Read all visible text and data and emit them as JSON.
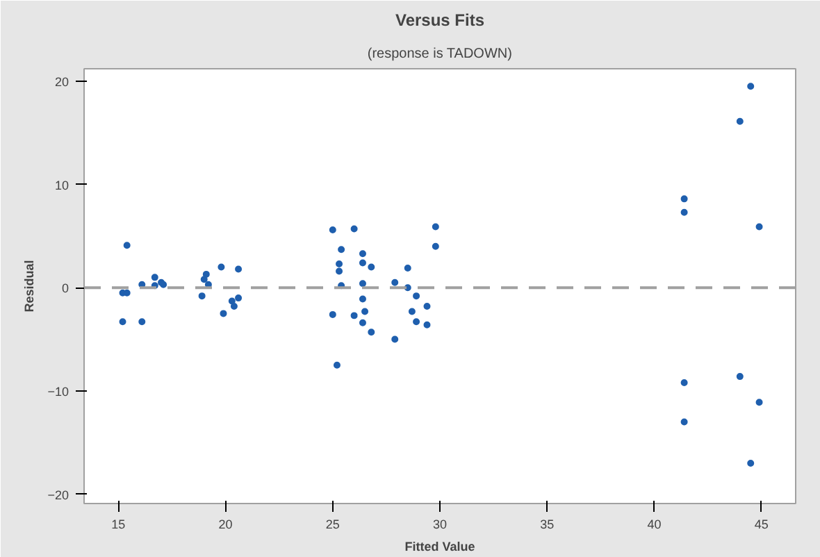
{
  "chart_data": {
    "type": "scatter",
    "title": "Versus Fits",
    "subtitle": "(response is TADOWN)",
    "xlabel": "Fitted Value",
    "ylabel": "Residual",
    "marker": "circle",
    "grid": false,
    "xlim": [
      13.4,
      46.6
    ],
    "ylim": [
      -20.9,
      21.2
    ],
    "xticks": [
      15,
      20,
      25,
      30,
      35,
      40,
      45
    ],
    "yticks": [
      -20,
      -10,
      0,
      10,
      20
    ],
    "ref_lines": [
      {
        "axis": "y",
        "value": 0,
        "color": "#a0a0a0",
        "line_style": "dashed"
      }
    ],
    "series": [
      {
        "color": "#1f5fae",
        "x": [
          15.4,
          15.2,
          15.4,
          15.2,
          16.1,
          16.1,
          16.7,
          17.0,
          17.1,
          16.7,
          18.9,
          19.0,
          19.1,
          19.2,
          19.8,
          19.9,
          20.6,
          20.3,
          20.4,
          20.6,
          25.0,
          26.0,
          25.4,
          25.3,
          25.3,
          25.4,
          25.0,
          25.2,
          26.4,
          26.4,
          26.8,
          26.4,
          26.4,
          26.0,
          26.5,
          26.4,
          26.8,
          27.9,
          28.5,
          28.5,
          28.9,
          29.4,
          28.7,
          28.9,
          29.4,
          27.9,
          29.8,
          29.8,
          44.5,
          44.0,
          41.4,
          41.4,
          44.9,
          41.4,
          44.0,
          44.9,
          41.4,
          44.5
        ],
        "values": [
          4.1,
          -0.5,
          -0.5,
          -3.3,
          -3.3,
          0.3,
          1.0,
          0.5,
          0.3,
          0.2,
          -0.8,
          0.8,
          1.3,
          0.3,
          2.0,
          -2.5,
          1.8,
          -1.3,
          -1.8,
          -1.0,
          5.6,
          5.7,
          3.7,
          2.3,
          1.6,
          0.2,
          -2.6,
          -7.5,
          3.3,
          2.4,
          2.0,
          0.4,
          -1.1,
          -2.7,
          -2.3,
          -3.4,
          -4.3,
          0.5,
          1.9,
          0.0,
          -0.8,
          -1.8,
          -2.3,
          -3.3,
          -3.6,
          -5.0,
          5.9,
          4.0,
          19.5,
          16.1,
          8.6,
          7.3,
          5.9,
          -9.2,
          -8.6,
          -11.1,
          -13.0,
          -17.0
        ]
      }
    ]
  }
}
